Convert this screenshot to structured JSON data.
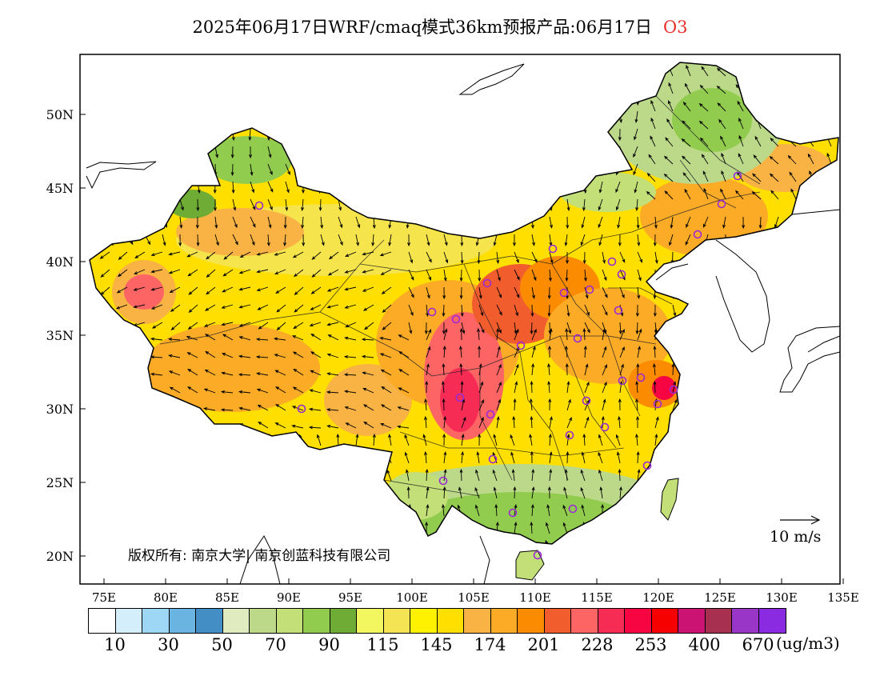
{
  "title": {
    "text": "2025年06月17日WRF/cmaq模式36km预报产品:06月17日",
    "species": "O3"
  },
  "map": {
    "lat_labels": [
      "50N",
      "45N",
      "40N",
      "35N",
      "30N",
      "25N",
      "20N"
    ],
    "lon_labels": [
      "75E",
      "80E",
      "85E",
      "90E",
      "95E",
      "100E",
      "105E",
      "110E",
      "115E",
      "120E",
      "125E",
      "130E",
      "135E"
    ],
    "copyright": "版权所有: 南京大学| 南京创蓝科技有限公司",
    "wind_scale_label": "10 m/s"
  },
  "legend": {
    "colors": [
      "#ffffff",
      "#d4eefb",
      "#9ed7f5",
      "#69b4e0",
      "#438ec4",
      "#e0ecc0",
      "#bcd98a",
      "#c2df78",
      "#92cc4f",
      "#6eac35",
      "#f2f760",
      "#f4e453",
      "#fff200",
      "#fedf00",
      "#f8b344",
      "#fbab26",
      "#fb8b00",
      "#f25d2d",
      "#fd6464",
      "#f72c55",
      "#f70543",
      "#f70000",
      "#cb1373",
      "#a73050",
      "#9935c7",
      "#8a2be2"
    ],
    "labels": [
      "10",
      "30",
      "50",
      "70",
      "90",
      "115",
      "145",
      "174",
      "201",
      "228",
      "253",
      "400",
      "670"
    ],
    "unit": "(ug/m3)"
  },
  "colors": {
    "title_species": "#e8302c",
    "station_marker": "#9a2bd4",
    "outline": "#000000"
  }
}
